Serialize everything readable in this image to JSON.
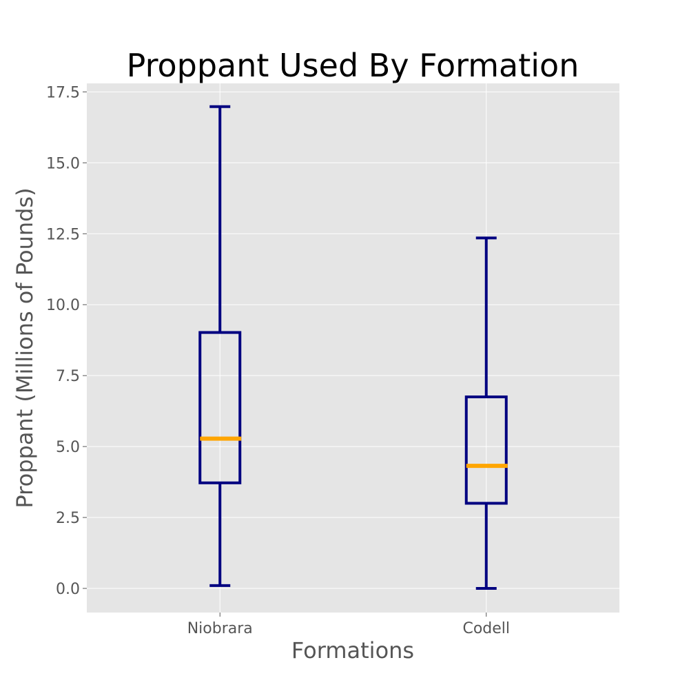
{
  "chart_data": {
    "type": "boxplot",
    "title": "Proppant Used By Formation",
    "xlabel": "Formations",
    "ylabel": "Proppant (Millions of Pounds)",
    "ylim": [
      -0.85,
      17.8
    ],
    "y_ticks": [
      "0.0",
      "2.5",
      "5.0",
      "7.5",
      "10.0",
      "12.5",
      "15.0",
      "17.5"
    ],
    "categories": [
      "Niobrara",
      "Codell"
    ],
    "boxes": [
      {
        "category": "Niobrara",
        "whisker_low": 0.1,
        "q1": 3.72,
        "median": 5.28,
        "q3": 9.02,
        "whisker_high": 16.98
      },
      {
        "category": "Codell",
        "whisker_low": 0.0,
        "q1": 3.0,
        "median": 4.32,
        "q3": 6.75,
        "whisker_high": 12.35
      }
    ],
    "grid": true,
    "colors": {
      "background": "#e5e5e5",
      "grid": "#ffffff",
      "box": "#000080",
      "median": "#ffa500"
    }
  }
}
